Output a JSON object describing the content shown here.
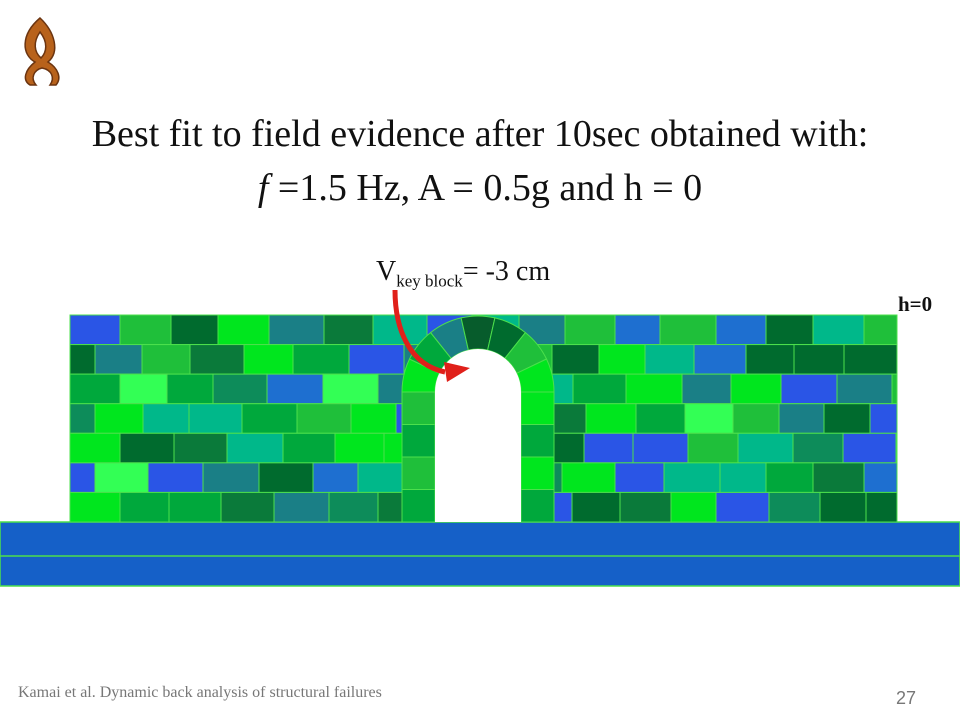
{
  "header": {
    "title_line1": "Best fit to field evidence after 10sec obtained with:",
    "title_line2_italic": "f",
    "title_line2_rest": "=1.5 Hz, A = 0.5g and h = 0"
  },
  "annotation": {
    "symbol": "V",
    "subscript": "key block",
    "rest": "= -3 cm"
  },
  "side_label": "h=0",
  "footer": {
    "text": "Kamai et al. Dynamic back analysis of structural failures",
    "page": "27"
  }
}
